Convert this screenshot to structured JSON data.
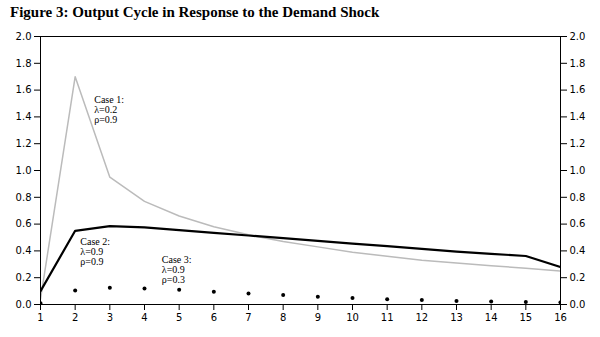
{
  "chart_data": {
    "type": "line",
    "title": "Figure 3: Output Cycle in Response to the Demand Shock",
    "x": [
      1,
      2,
      3,
      4,
      5,
      6,
      7,
      8,
      9,
      10,
      11,
      12,
      13,
      14,
      15,
      16
    ],
    "series": [
      {
        "color": "#bbbbbb",
        "line_style": "solid",
        "values": [
          0.04,
          1.7,
          0.95,
          0.77,
          0.66,
          0.58,
          0.52,
          0.47,
          0.43,
          0.39,
          0.36,
          0.33,
          0.31,
          0.29,
          0.27,
          0.25
        ]
      },
      {
        "color": "#000000",
        "line_style": "solid",
        "values": [
          0.1,
          0.55,
          0.585,
          0.575,
          0.555,
          0.535,
          0.515,
          0.495,
          0.475,
          0.455,
          0.435,
          0.415,
          0.395,
          0.378,
          0.362,
          0.28
        ]
      },
      {
        "color": "#000000",
        "line_style": "none",
        "marker": ".",
        "values": [
          0.01,
          0.105,
          0.125,
          0.12,
          0.11,
          0.095,
          0.082,
          0.07,
          0.058,
          0.048,
          0.04,
          0.033,
          0.027,
          0.023,
          0.019,
          0.016
        ]
      }
    ],
    "xlim": [
      1,
      16
    ],
    "xticks": [
      1,
      2,
      3,
      4,
      5,
      6,
      7,
      8,
      9,
      10,
      11,
      12,
      13,
      14,
      15,
      16
    ],
    "ylim": [
      0.0,
      2.0
    ],
    "yticks": [
      {
        "value": 0.0,
        "label": "0.0"
      },
      0.2,
      0.4,
      0.6,
      0.8,
      {
        "value": 1.0,
        "label": "1.0"
      },
      1.2,
      1.4,
      1.6,
      1.8,
      {
        "value": 2.0,
        "label": "2.0"
      }
    ],
    "y2lim": [
      0.0,
      2.0
    ],
    "y2ticks": [
      {
        "value": 0.0,
        "label": "0.0"
      },
      0.2,
      0.4,
      0.6,
      0.8,
      {
        "value": 1.0,
        "label": "1.0"
      },
      1.2,
      1.4,
      1.6,
      1.8,
      {
        "value": 2.0,
        "label": "2.0"
      }
    ],
    "annotations": [
      {
        "text": "Case 1:\nλ=0.2\nρ=0.9",
        "x": 2.55,
        "y": 1.56
      },
      {
        "text": "Case 2:\nλ=0.9\nρ=0.9",
        "x": 2.15,
        "y": 0.5
      },
      {
        "text": "Case 3:\nλ=0.9\nρ=0.3",
        "x": 4.5,
        "y": 0.36
      }
    ],
    "grid": false,
    "legend": false
  }
}
